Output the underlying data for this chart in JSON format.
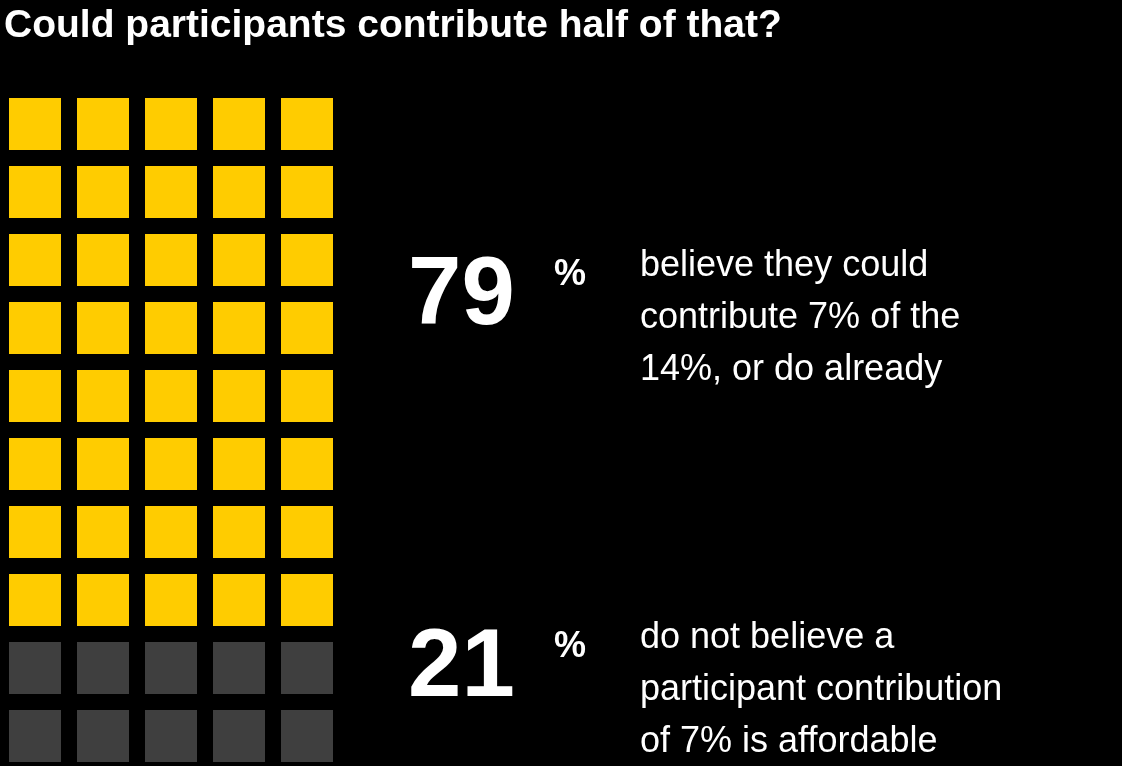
{
  "chart_data": {
    "type": "other",
    "title": "Could participants contribute half of that?",
    "categories": [
      "believe they could contribute 7% of the 14%, or do already",
      "do not believe a participant contribution of 7% is affordable"
    ],
    "values": [
      79,
      21
    ],
    "value_labels": [
      "79 %",
      "21 %"
    ],
    "colors": [
      "#ffcc00",
      "#3f3f3f"
    ]
  }
}
